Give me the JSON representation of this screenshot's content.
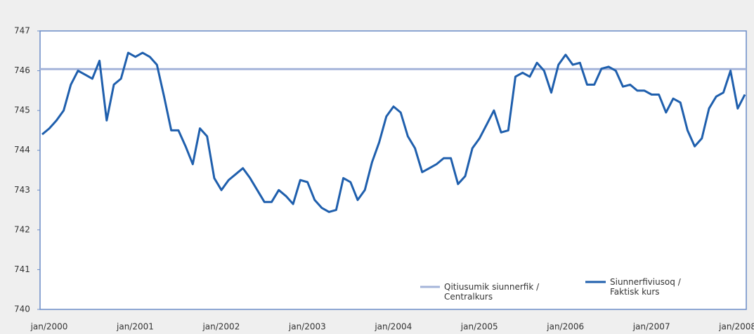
{
  "chart_data": {
    "type": "line",
    "categories": [
      "jan/2000",
      null,
      null,
      null,
      null,
      null,
      null,
      null,
      null,
      null,
      null,
      null,
      "jan/2001",
      null,
      null,
      null,
      null,
      null,
      null,
      null,
      null,
      null,
      null,
      null,
      "jan/2002",
      null,
      null,
      null,
      null,
      null,
      null,
      null,
      null,
      null,
      null,
      null,
      "jan/2003",
      null,
      null,
      null,
      null,
      null,
      null,
      null,
      null,
      null,
      null,
      null,
      "jan/2004",
      null,
      null,
      null,
      null,
      null,
      null,
      null,
      null,
      null,
      null,
      null,
      "jan/2005",
      null,
      null,
      null,
      null,
      null,
      null,
      null,
      null,
      null,
      null,
      null,
      "jan/2006",
      null,
      null,
      null,
      null,
      null,
      null,
      null,
      null,
      null,
      null,
      null,
      "jan/2007",
      null,
      null,
      null,
      null,
      null,
      null,
      null,
      null,
      null,
      null,
      null,
      "jan/2008",
      null,
      null
    ],
    "series": [
      {
        "name": "Siunnerfiviusoq /\nFaktisk kurs",
        "color": "#1f5fad",
        "values": [
          744.4,
          744.55,
          744.75,
          745.0,
          745.65,
          746.0,
          745.9,
          745.8,
          746.25,
          744.75,
          745.65,
          745.8,
          746.45,
          746.35,
          746.45,
          746.35,
          746.15,
          745.35,
          744.5,
          744.5,
          744.1,
          743.65,
          744.55,
          744.35,
          743.3,
          743.0,
          743.25,
          743.4,
          743.55,
          743.3,
          743.0,
          742.7,
          742.7,
          743.0,
          742.85,
          742.65,
          743.25,
          743.2,
          742.75,
          742.55,
          742.45,
          742.5,
          743.3,
          743.2,
          742.75,
          743.0,
          743.7,
          744.2,
          744.85,
          745.1,
          744.95,
          744.35,
          744.05,
          743.45,
          743.55,
          743.65,
          743.8,
          743.8,
          743.15,
          743.35,
          744.05,
          744.3,
          744.65,
          745.0,
          744.45,
          744.5,
          745.85,
          745.95,
          745.85,
          746.2,
          746.0,
          745.45,
          746.15,
          746.4,
          746.15,
          746.2,
          745.65,
          745.65,
          746.05,
          746.1,
          746.0,
          745.6,
          745.65,
          745.5,
          745.5,
          745.4,
          745.4,
          744.95,
          745.3,
          745.2,
          744.5,
          744.1,
          744.3,
          745.05,
          745.35,
          745.45,
          746.0,
          745.05,
          745.4
        ]
      }
    ],
    "reference_line": {
      "name": "Qitiusumik siunnerfik /\nCentralkurs",
      "color": "#a4b4d9",
      "value": 746.04
    },
    "ylim": [
      740,
      747
    ],
    "yticks": [
      740,
      741,
      742,
      743,
      744,
      745,
      746,
      747
    ]
  }
}
